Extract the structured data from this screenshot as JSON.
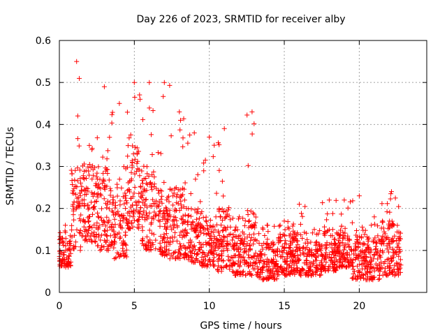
{
  "chart_data": {
    "type": "scatter",
    "title": "Day 226 of 2023, SRMTID for receiver alby",
    "xlabel": "GPS time / hours",
    "ylabel": "SRMTID / TECUs",
    "xlim": [
      0,
      24.5
    ],
    "ylim": [
      0,
      0.6
    ],
    "xticks": [
      0,
      5,
      10,
      15,
      20
    ],
    "xtick_labels": [
      "0",
      "5",
      "10",
      "15",
      "20"
    ],
    "yticks": [
      0,
      0.1,
      0.2,
      0.3,
      0.4,
      0.5,
      0.6
    ],
    "ytick_labels": [
      "0",
      "0.1",
      "0.2",
      "0.3",
      "0.4",
      "0.5",
      "0.6"
    ],
    "grid": true,
    "marker": "+",
    "marker_color": "#ff0000",
    "series": [
      {
        "name": "SRMTID",
        "profile_description": "binned envelope of plotted points: [hour_start, hour_end, typical_low, typical_high, peak_max]",
        "envelope": [
          [
            0.0,
            0.8,
            0.06,
            0.13,
            0.16
          ],
          [
            0.8,
            1.5,
            0.1,
            0.3,
            0.55
          ],
          [
            1.5,
            2.5,
            0.12,
            0.3,
            0.35
          ],
          [
            2.5,
            3.5,
            0.1,
            0.3,
            0.49
          ],
          [
            3.5,
            4.5,
            0.08,
            0.25,
            0.45
          ],
          [
            4.5,
            5.5,
            0.15,
            0.35,
            0.5
          ],
          [
            5.5,
            6.5,
            0.1,
            0.3,
            0.5
          ],
          [
            6.5,
            7.5,
            0.08,
            0.25,
            0.5
          ],
          [
            7.5,
            8.5,
            0.08,
            0.25,
            0.43
          ],
          [
            8.5,
            9.5,
            0.07,
            0.2,
            0.38
          ],
          [
            9.5,
            10.5,
            0.06,
            0.18,
            0.37
          ],
          [
            10.5,
            11.5,
            0.05,
            0.2,
            0.39
          ],
          [
            11.5,
            12.5,
            0.04,
            0.15,
            0.18
          ],
          [
            12.5,
            13.2,
            0.04,
            0.2,
            0.43
          ],
          [
            13.2,
            14.5,
            0.03,
            0.12,
            0.16
          ],
          [
            14.5,
            15.5,
            0.04,
            0.14,
            0.17
          ],
          [
            15.5,
            16.5,
            0.04,
            0.15,
            0.21
          ],
          [
            16.5,
            17.5,
            0.04,
            0.12,
            0.15
          ],
          [
            17.5,
            18.5,
            0.05,
            0.15,
            0.22
          ],
          [
            18.5,
            19.5,
            0.06,
            0.15,
            0.22
          ],
          [
            19.5,
            20.5,
            0.03,
            0.14,
            0.23
          ],
          [
            20.5,
            21.5,
            0.03,
            0.13,
            0.18
          ],
          [
            21.5,
            22.8,
            0.04,
            0.17,
            0.24
          ]
        ]
      }
    ]
  }
}
